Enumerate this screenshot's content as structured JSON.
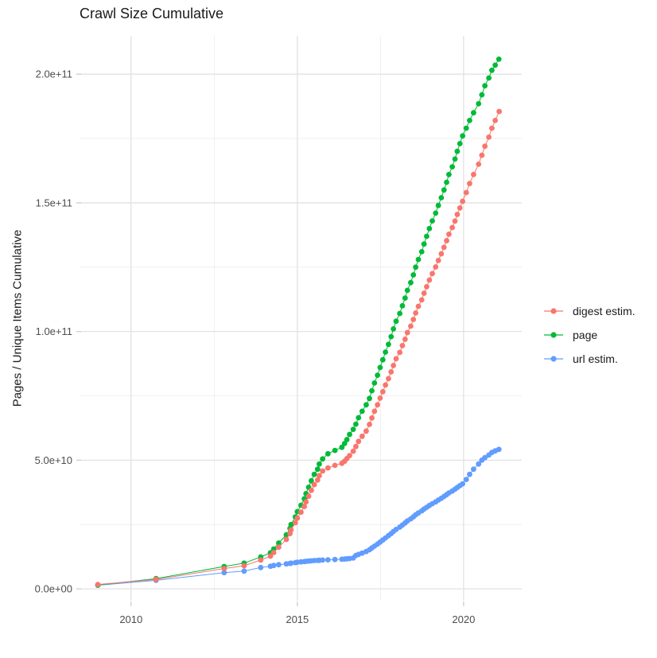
{
  "title": "Crawl Size Cumulative",
  "chart_data": {
    "type": "scatter",
    "title": "Crawl Size Cumulative",
    "xlabel": "",
    "ylabel": "Pages / Unique Items Cumulative",
    "grid": true,
    "legend_position": "right",
    "x_unit": "year (decimal)",
    "value_unit": "pages (billions, 1e9)",
    "xlim": [
      2008.45,
      2021.75
    ],
    "ylim_billions": [
      -4.6,
      214.9
    ],
    "x_major_ticks": [
      2010,
      2015,
      2020
    ],
    "x_tick_labels": [
      "2010",
      "2015",
      "2020"
    ],
    "x_minor_ticks": [
      2012.5,
      2017.5
    ],
    "y_major_ticks_billions": [
      0,
      50,
      100,
      150,
      200
    ],
    "y_tick_labels": [
      "0.0e+00",
      "5.0e+10",
      "1.0e+11",
      "1.5e+11",
      "2.0e+11"
    ],
    "y_minor_ticks_billions": [
      25,
      75,
      125,
      175
    ],
    "series": [
      {
        "name": "digest estim.",
        "color": "#F8766D",
        "points": [
          [
            2009.0,
            1.7
          ],
          [
            2010.75,
            3.7
          ],
          [
            2012.8,
            7.9
          ],
          [
            2013.4,
            9.0
          ],
          [
            2013.9,
            11.2
          ],
          [
            2014.19,
            12.7
          ],
          [
            2014.29,
            14.1
          ],
          [
            2014.44,
            16.2
          ],
          [
            2014.67,
            19.2
          ],
          [
            2014.78,
            21.5
          ],
          [
            2014.81,
            22.9
          ],
          [
            2014.94,
            25.7
          ],
          [
            2015.0,
            27.5
          ],
          [
            2015.11,
            29.8
          ],
          [
            2015.21,
            32.0
          ],
          [
            2015.26,
            33.8
          ],
          [
            2015.34,
            36.0
          ],
          [
            2015.42,
            38.3
          ],
          [
            2015.51,
            40.5
          ],
          [
            2015.61,
            42.3
          ],
          [
            2015.66,
            44.0
          ],
          [
            2015.76,
            45.8
          ],
          [
            2015.92,
            47.0
          ],
          [
            2016.13,
            48.0
          ],
          [
            2016.34,
            48.8
          ],
          [
            2016.42,
            49.6
          ],
          [
            2016.49,
            50.6
          ],
          [
            2016.57,
            51.8
          ],
          [
            2016.68,
            53.5
          ],
          [
            2016.76,
            55.3
          ],
          [
            2016.84,
            57.3
          ],
          [
            2016.95,
            59.3
          ],
          [
            2017.07,
            61.3
          ],
          [
            2017.17,
            63.9
          ],
          [
            2017.24,
            66.4
          ],
          [
            2017.32,
            69.0
          ],
          [
            2017.41,
            71.5
          ],
          [
            2017.49,
            74.1
          ],
          [
            2017.57,
            76.6
          ],
          [
            2017.65,
            79.2
          ],
          [
            2017.74,
            81.7
          ],
          [
            2017.82,
            84.3
          ],
          [
            2017.89,
            86.8
          ],
          [
            2017.97,
            89.4
          ],
          [
            2018.08,
            91.9
          ],
          [
            2018.16,
            94.5
          ],
          [
            2018.24,
            97.0
          ],
          [
            2018.31,
            99.6
          ],
          [
            2018.41,
            102.1
          ],
          [
            2018.49,
            104.7
          ],
          [
            2018.56,
            107.2
          ],
          [
            2018.64,
            109.8
          ],
          [
            2018.74,
            112.3
          ],
          [
            2018.81,
            114.9
          ],
          [
            2018.89,
            117.4
          ],
          [
            2018.97,
            120.0
          ],
          [
            2019.06,
            122.5
          ],
          [
            2019.16,
            125.1
          ],
          [
            2019.24,
            127.6
          ],
          [
            2019.33,
            130.2
          ],
          [
            2019.41,
            132.7
          ],
          [
            2019.49,
            135.3
          ],
          [
            2019.56,
            137.8
          ],
          [
            2019.66,
            140.4
          ],
          [
            2019.74,
            142.9
          ],
          [
            2019.81,
            145.5
          ],
          [
            2019.89,
            148.0
          ],
          [
            2019.97,
            150.6
          ],
          [
            2020.08,
            154.0
          ],
          [
            2020.18,
            157.5
          ],
          [
            2020.3,
            161.0
          ],
          [
            2020.45,
            165.0
          ],
          [
            2020.55,
            168.5
          ],
          [
            2020.64,
            172.0
          ],
          [
            2020.76,
            175.5
          ],
          [
            2020.85,
            179.0
          ],
          [
            2020.95,
            182.0
          ],
          [
            2021.07,
            185.5
          ]
        ]
      },
      {
        "name": "page",
        "color": "#00BA38",
        "points": [
          [
            2009.0,
            1.5
          ],
          [
            2010.75,
            4.0
          ],
          [
            2012.8,
            8.7
          ],
          [
            2013.4,
            10.0
          ],
          [
            2013.9,
            12.4
          ],
          [
            2014.19,
            14.0
          ],
          [
            2014.29,
            15.5
          ],
          [
            2014.44,
            17.8
          ],
          [
            2014.67,
            21.0
          ],
          [
            2014.78,
            23.5
          ],
          [
            2014.81,
            25.0
          ],
          [
            2014.94,
            28.0
          ],
          [
            2015.0,
            30.0
          ],
          [
            2015.11,
            32.5
          ],
          [
            2015.21,
            35.0
          ],
          [
            2015.26,
            37.0
          ],
          [
            2015.34,
            39.5
          ],
          [
            2015.42,
            42.0
          ],
          [
            2015.51,
            44.5
          ],
          [
            2015.61,
            46.5
          ],
          [
            2015.66,
            48.5
          ],
          [
            2015.76,
            50.5
          ],
          [
            2015.92,
            52.5
          ],
          [
            2016.13,
            53.8
          ],
          [
            2016.34,
            55.0
          ],
          [
            2016.42,
            56.5
          ],
          [
            2016.49,
            58.0
          ],
          [
            2016.57,
            60.0
          ],
          [
            2016.68,
            62.0
          ],
          [
            2016.76,
            64.0
          ],
          [
            2016.84,
            66.5
          ],
          [
            2016.95,
            69.0
          ],
          [
            2017.07,
            71.5
          ],
          [
            2017.17,
            74.0
          ],
          [
            2017.24,
            77.0
          ],
          [
            2017.32,
            80.0
          ],
          [
            2017.41,
            83.0
          ],
          [
            2017.49,
            86.0
          ],
          [
            2017.57,
            89.0
          ],
          [
            2017.65,
            92.0
          ],
          [
            2017.74,
            95.0
          ],
          [
            2017.82,
            98.0
          ],
          [
            2017.89,
            101.0
          ],
          [
            2017.97,
            104.0
          ],
          [
            2018.08,
            107.0
          ],
          [
            2018.16,
            110.0
          ],
          [
            2018.24,
            113.0
          ],
          [
            2018.31,
            116.0
          ],
          [
            2018.41,
            119.0
          ],
          [
            2018.49,
            122.0
          ],
          [
            2018.56,
            125.0
          ],
          [
            2018.64,
            128.0
          ],
          [
            2018.74,
            131.0
          ],
          [
            2018.81,
            134.0
          ],
          [
            2018.89,
            137.0
          ],
          [
            2018.97,
            140.0
          ],
          [
            2019.06,
            143.0
          ],
          [
            2019.16,
            146.0
          ],
          [
            2019.24,
            149.0
          ],
          [
            2019.33,
            152.0
          ],
          [
            2019.41,
            155.0
          ],
          [
            2019.49,
            158.0
          ],
          [
            2019.56,
            161.0
          ],
          [
            2019.66,
            164.0
          ],
          [
            2019.74,
            167.0
          ],
          [
            2019.81,
            170.0
          ],
          [
            2019.89,
            173.0
          ],
          [
            2019.97,
            176.0
          ],
          [
            2020.08,
            179.0
          ],
          [
            2020.18,
            182.0
          ],
          [
            2020.3,
            185.0
          ],
          [
            2020.45,
            188.5
          ],
          [
            2020.55,
            192.0
          ],
          [
            2020.64,
            195.5
          ],
          [
            2020.76,
            198.5
          ],
          [
            2020.85,
            201.5
          ],
          [
            2020.95,
            203.5
          ],
          [
            2021.06,
            205.8
          ]
        ]
      },
      {
        "name": "url estim.",
        "color": "#619CFF",
        "points": [
          [
            2009.0,
            1.4
          ],
          [
            2010.75,
            3.3
          ],
          [
            2012.8,
            6.3
          ],
          [
            2013.4,
            6.9
          ],
          [
            2013.9,
            8.3
          ],
          [
            2014.19,
            8.8
          ],
          [
            2014.29,
            9.1
          ],
          [
            2014.44,
            9.4
          ],
          [
            2014.67,
            9.7
          ],
          [
            2014.78,
            9.9
          ],
          [
            2014.81,
            10.0
          ],
          [
            2014.94,
            10.2
          ],
          [
            2015.0,
            10.35
          ],
          [
            2015.11,
            10.5
          ],
          [
            2015.21,
            10.6
          ],
          [
            2015.26,
            10.7
          ],
          [
            2015.34,
            10.8
          ],
          [
            2015.42,
            10.9
          ],
          [
            2015.51,
            11.0
          ],
          [
            2015.61,
            11.05
          ],
          [
            2015.66,
            11.1
          ],
          [
            2015.76,
            11.2
          ],
          [
            2015.92,
            11.3
          ],
          [
            2016.13,
            11.4
          ],
          [
            2016.34,
            11.5
          ],
          [
            2016.42,
            11.6
          ],
          [
            2016.49,
            11.7
          ],
          [
            2016.57,
            11.8
          ],
          [
            2016.68,
            12.0
          ],
          [
            2016.76,
            13.0
          ],
          [
            2016.84,
            13.4
          ],
          [
            2016.95,
            13.9
          ],
          [
            2017.07,
            14.5
          ],
          [
            2017.17,
            15.2
          ],
          [
            2017.24,
            15.9
          ],
          [
            2017.32,
            16.6
          ],
          [
            2017.41,
            17.4
          ],
          [
            2017.49,
            18.2
          ],
          [
            2017.57,
            19.0
          ],
          [
            2017.65,
            19.8
          ],
          [
            2017.74,
            20.7
          ],
          [
            2017.82,
            21.5
          ],
          [
            2017.89,
            22.3
          ],
          [
            2017.97,
            23.1
          ],
          [
            2018.08,
            24.0
          ],
          [
            2018.16,
            24.8
          ],
          [
            2018.24,
            25.6
          ],
          [
            2018.31,
            26.4
          ],
          [
            2018.41,
            27.2
          ],
          [
            2018.49,
            28.0
          ],
          [
            2018.56,
            28.8
          ],
          [
            2018.64,
            29.5
          ],
          [
            2018.74,
            30.3
          ],
          [
            2018.81,
            31.0
          ],
          [
            2018.89,
            31.7
          ],
          [
            2018.97,
            32.4
          ],
          [
            2019.06,
            33.1
          ],
          [
            2019.16,
            33.8
          ],
          [
            2019.24,
            34.5
          ],
          [
            2019.33,
            35.2
          ],
          [
            2019.41,
            35.9
          ],
          [
            2019.49,
            36.6
          ],
          [
            2019.56,
            37.3
          ],
          [
            2019.66,
            38.0
          ],
          [
            2019.74,
            38.7
          ],
          [
            2019.81,
            39.4
          ],
          [
            2019.89,
            40.1
          ],
          [
            2019.97,
            40.8
          ],
          [
            2020.08,
            42.5
          ],
          [
            2020.18,
            44.5
          ],
          [
            2020.3,
            46.5
          ],
          [
            2020.45,
            48.5
          ],
          [
            2020.55,
            50.0
          ],
          [
            2020.64,
            51.0
          ],
          [
            2020.76,
            52.0
          ],
          [
            2020.85,
            53.0
          ],
          [
            2020.95,
            53.6
          ],
          [
            2021.06,
            54.2
          ]
        ]
      }
    ]
  },
  "style": {
    "grid_major_color": "#E2E2E2",
    "grid_minor_color": "#ECECEC",
    "tick_color": "#C9C9C9",
    "tick_label_color": "#4d4d4d",
    "point_radius": 3.4
  }
}
